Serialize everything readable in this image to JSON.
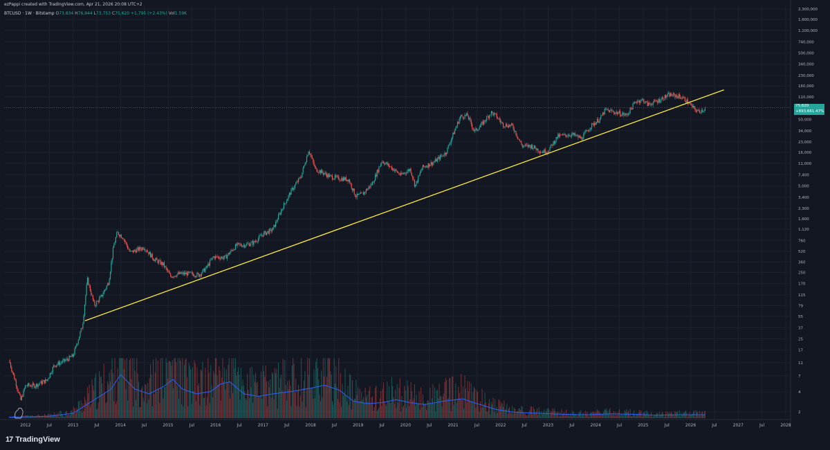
{
  "header": {
    "caption": "ezPappi created with TradingView.com, Apr 21, 2026 20:08 UTC+2",
    "symbol": "BTCUSD · 1W · Bitstamp",
    "open_label": "O",
    "open": "73,834",
    "high_label": "H",
    "high": "76,944",
    "low_label": "L",
    "low": "73,753",
    "close_label": "C",
    "close": "75,620",
    "change": "+1,795 (+2.43%)",
    "vol_label": "Vol",
    "vol": "1.59K"
  },
  "price_tag": {
    "price": "75,620",
    "change": "+893,661.47%"
  },
  "footer": {
    "brand": "TradingView",
    "brand_mark": "17"
  },
  "colors": {
    "background": "#131722",
    "up": "#26a69a",
    "down": "#ef5350",
    "trendline": "#ffeb3b",
    "volume_ma": "#2962ff",
    "grid": "#1e2230"
  },
  "chart_data": {
    "type": "candlestick",
    "scale": "log",
    "timeframe": "1W",
    "y_ticks": [
      2,
      4,
      7,
      11,
      17,
      25,
      37,
      55,
      79,
      115,
      170,
      250,
      360,
      520,
      760,
      1120,
      1600,
      2300,
      3400,
      5000,
      7400,
      11000,
      16000,
      23000,
      34000,
      50000,
      75620,
      110000,
      160000,
      230000,
      340000,
      500000,
      740000,
      1100000,
      1600000,
      2300000
    ],
    "y_tick_labels": [
      "2",
      "4",
      "7",
      "11",
      "17",
      "25",
      "37",
      "55",
      "79",
      "115",
      "170",
      "250",
      "360",
      "520",
      "760",
      "1,120",
      "1,600",
      "2,300",
      "3,400",
      "5,000",
      "7,400",
      "11,000",
      "16,000",
      "23,000",
      "34,000",
      "50,000",
      "75,620",
      "110,000",
      "160,000",
      "230,000",
      "340,000",
      "500,000",
      "740,000",
      "1,100,000",
      "1,600,000",
      "2,300,000"
    ],
    "x_ticks": [
      "2012",
      "Jul",
      "2013",
      "Jul",
      "2014",
      "Jul",
      "2015",
      "Jul",
      "2016",
      "Jul",
      "2017",
      "Jul",
      "2018",
      "Jul",
      "2019",
      "Jul",
      "2020",
      "Jul",
      "2021",
      "Jul",
      "2022",
      "Jul",
      "2023",
      "Jul",
      "2024",
      "Jul",
      "2025",
      "Jul",
      "2026",
      "Jul",
      "2027",
      "Jul",
      "2028"
    ],
    "x_tick_years": [
      2012.0,
      2012.5,
      2013.0,
      2013.5,
      2014.0,
      2014.5,
      2015.0,
      2015.5,
      2016.0,
      2016.5,
      2017.0,
      2017.5,
      2018.0,
      2018.5,
      2019.0,
      2019.5,
      2020.0,
      2020.5,
      2021.0,
      2021.5,
      2022.0,
      2022.5,
      2023.0,
      2023.5,
      2024.0,
      2024.5,
      2025.0,
      2025.5,
      2026.0,
      2026.5,
      2027.0,
      2027.5,
      2028.0
    ],
    "price_path": [
      [
        2011.65,
        12
      ],
      [
        2011.78,
        6
      ],
      [
        2011.9,
        3
      ],
      [
        2012.0,
        5
      ],
      [
        2012.2,
        5
      ],
      [
        2012.45,
        6
      ],
      [
        2012.6,
        10
      ],
      [
        2012.85,
        12
      ],
      [
        2013.0,
        14
      ],
      [
        2013.2,
        40
      ],
      [
        2013.3,
        200
      ],
      [
        2013.45,
        80
      ],
      [
        2013.6,
        110
      ],
      [
        2013.75,
        180
      ],
      [
        2013.85,
        600
      ],
      [
        2013.93,
        1000
      ],
      [
        2014.05,
        850
      ],
      [
        2014.2,
        500
      ],
      [
        2014.35,
        550
      ],
      [
        2014.5,
        600
      ],
      [
        2014.7,
        400
      ],
      [
        2014.9,
        330
      ],
      [
        2015.05,
        220
      ],
      [
        2015.25,
        240
      ],
      [
        2015.45,
        240
      ],
      [
        2015.65,
        230
      ],
      [
        2015.8,
        290
      ],
      [
        2015.95,
        430
      ],
      [
        2016.2,
        420
      ],
      [
        2016.45,
        650
      ],
      [
        2016.6,
        650
      ],
      [
        2016.8,
        700
      ],
      [
        2017.0,
        950
      ],
      [
        2017.2,
        1100
      ],
      [
        2017.4,
        2300
      ],
      [
        2017.6,
        4300
      ],
      [
        2017.8,
        7000
      ],
      [
        2017.96,
        17500
      ],
      [
        2018.1,
        9000
      ],
      [
        2018.25,
        8000
      ],
      [
        2018.4,
        7000
      ],
      [
        2018.6,
        6500
      ],
      [
        2018.8,
        6300
      ],
      [
        2018.95,
        3500
      ],
      [
        2019.1,
        3800
      ],
      [
        2019.3,
        5500
      ],
      [
        2019.5,
        12000
      ],
      [
        2019.7,
        9500
      ],
      [
        2019.9,
        7300
      ],
      [
        2020.1,
        9000
      ],
      [
        2020.2,
        5000
      ],
      [
        2020.35,
        9500
      ],
      [
        2020.6,
        11500
      ],
      [
        2020.85,
        16000
      ],
      [
        2021.0,
        30000
      ],
      [
        2021.15,
        55000
      ],
      [
        2021.3,
        58000
      ],
      [
        2021.45,
        33000
      ],
      [
        2021.6,
        42000
      ],
      [
        2021.8,
        64000
      ],
      [
        2021.9,
        57000
      ],
      [
        2022.05,
        42000
      ],
      [
        2022.25,
        40000
      ],
      [
        2022.45,
        20000
      ],
      [
        2022.65,
        20000
      ],
      [
        2022.85,
        16500
      ],
      [
        2023.0,
        17000
      ],
      [
        2023.2,
        28000
      ],
      [
        2023.5,
        30000
      ],
      [
        2023.7,
        26000
      ],
      [
        2023.9,
        40000
      ],
      [
        2024.1,
        52000
      ],
      [
        2024.2,
        70000
      ],
      [
        2024.5,
        62000
      ],
      [
        2024.65,
        58000
      ],
      [
        2024.85,
        95000
      ],
      [
        2025.0,
        98000
      ],
      [
        2025.1,
        84000
      ],
      [
        2025.3,
        95000
      ],
      [
        2025.55,
        118000
      ],
      [
        2025.75,
        112000
      ],
      [
        2025.85,
        105000
      ],
      [
        2025.95,
        90000
      ],
      [
        2026.05,
        75000
      ],
      [
        2026.15,
        66000
      ],
      [
        2026.3,
        72000
      ],
      [
        2026.32,
        75620
      ]
    ],
    "trendline": {
      "from": [
        2013.25,
        47
      ],
      "to": [
        2026.7,
        140000
      ]
    },
    "volume_ma_path": [
      [
        2011.65,
        0.02
      ],
      [
        2012.5,
        0.04
      ],
      [
        2013.0,
        0.1
      ],
      [
        2013.4,
        0.35
      ],
      [
        2013.8,
        0.6
      ],
      [
        2014.0,
        0.9
      ],
      [
        2014.3,
        0.6
      ],
      [
        2014.6,
        0.5
      ],
      [
        2014.9,
        0.65
      ],
      [
        2015.1,
        0.8
      ],
      [
        2015.3,
        0.6
      ],
      [
        2015.6,
        0.5
      ],
      [
        2015.9,
        0.55
      ],
      [
        2016.1,
        0.7
      ],
      [
        2016.3,
        0.75
      ],
      [
        2016.6,
        0.5
      ],
      [
        2016.9,
        0.45
      ],
      [
        2017.2,
        0.5
      ],
      [
        2017.6,
        0.55
      ],
      [
        2018.0,
        0.62
      ],
      [
        2018.3,
        0.68
      ],
      [
        2018.6,
        0.58
      ],
      [
        2018.9,
        0.35
      ],
      [
        2019.2,
        0.3
      ],
      [
        2019.5,
        0.32
      ],
      [
        2019.8,
        0.38
      ],
      [
        2020.1,
        0.32
      ],
      [
        2020.4,
        0.28
      ],
      [
        2020.8,
        0.35
      ],
      [
        2021.2,
        0.4
      ],
      [
        2021.5,
        0.3
      ],
      [
        2021.9,
        0.18
      ],
      [
        2022.3,
        0.12
      ],
      [
        2022.8,
        0.1
      ],
      [
        2023.3,
        0.08
      ],
      [
        2023.8,
        0.07
      ],
      [
        2024.3,
        0.09
      ],
      [
        2024.8,
        0.08
      ],
      [
        2025.3,
        0.06
      ],
      [
        2025.8,
        0.07
      ],
      [
        2026.3,
        0.07
      ]
    ]
  }
}
